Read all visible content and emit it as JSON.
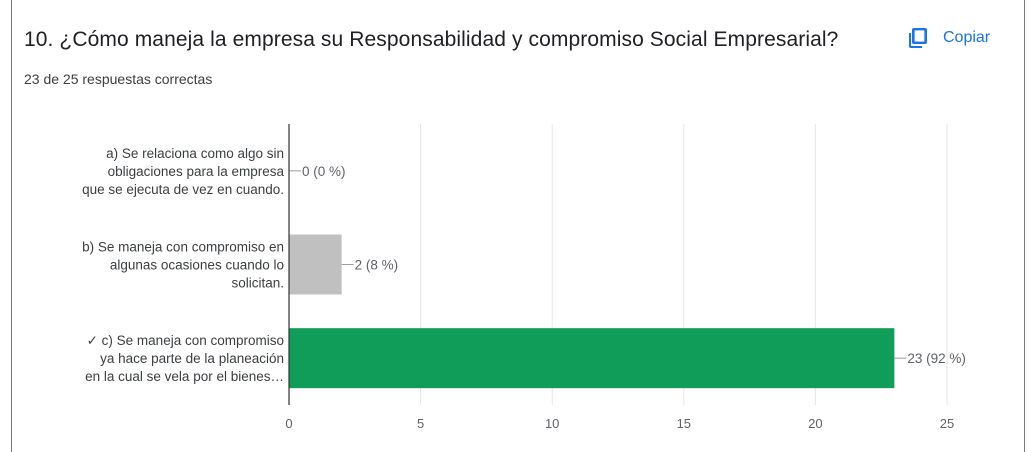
{
  "question": {
    "title": "10. ¿Cómo maneja la empresa su Responsabilidad y compromiso Social Empresarial?",
    "summary": "23 de 25 respuestas correctas"
  },
  "toolbar": {
    "copy_label": "Copiar",
    "copy_icon": "copy-icon"
  },
  "colors": {
    "correct": "#109d59",
    "incorrect": "#c0c0c0",
    "accent": "#1a73e8",
    "grid": "#e6e6e6"
  },
  "chart_data": {
    "type": "bar",
    "orientation": "horizontal",
    "title": "",
    "xlabel": "",
    "ylabel": "",
    "xlim": [
      0,
      25
    ],
    "ticks": [
      0,
      5,
      10,
      15,
      20,
      25
    ],
    "grid": true,
    "legend": "none",
    "categories": [
      {
        "lines": [
          "a) Se relaciona como algo sin",
          "obligaciones para la empresa",
          "que se ejecuta de vez en cuando."
        ],
        "value": 0,
        "label": "0 (0 %)",
        "correct": false
      },
      {
        "lines": [
          "b) Se maneja con compromiso en",
          "algunas ocasiones cuando lo",
          "solicitan."
        ],
        "value": 2,
        "label": "2 (8 %)",
        "correct": false
      },
      {
        "lines": [
          "✓ c) Se maneja con compromiso",
          "ya hace parte de la planeación",
          "en la cual se vela por el bienes…"
        ],
        "value": 23,
        "label": "23 (92 %)",
        "correct": true
      }
    ]
  }
}
